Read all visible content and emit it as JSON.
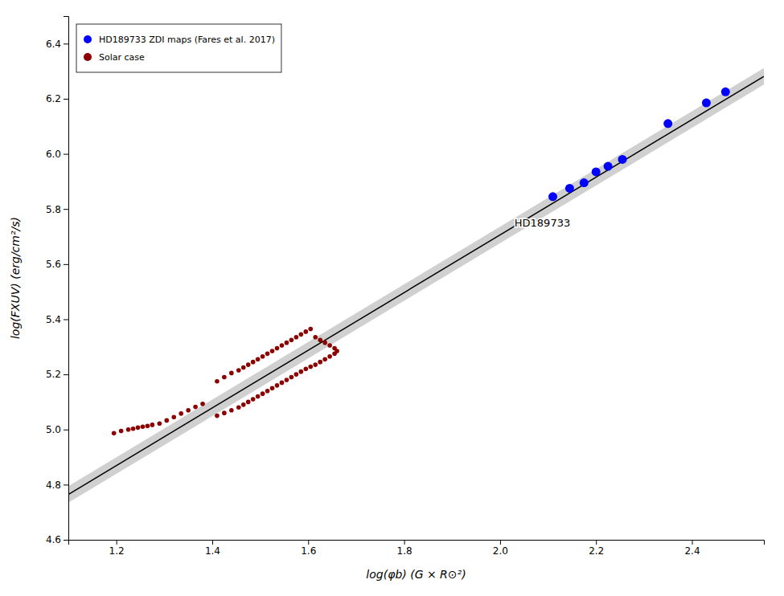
{
  "chart_data": {
    "type": "scatter",
    "xlabel": "log(φb) (G × R⊙²)",
    "ylabel": "log(FXUV) (erg/cm²/s)",
    "xlim": [
      1.1,
      2.55
    ],
    "ylim": [
      4.6,
      6.5
    ],
    "xticks": [
      1.2,
      1.4,
      1.6,
      1.8,
      {
        "value": 2.0,
        "label": "2.0"
      },
      2.2,
      2.4
    ],
    "yticks": [
      4.6,
      4.8,
      {
        "value": 5.0,
        "label": "5.0"
      },
      5.2,
      5.4,
      5.6,
      5.8,
      {
        "value": 6.0,
        "label": "6.0"
      },
      6.2,
      6.4
    ],
    "grid": false,
    "legend": "upper left",
    "annotations": [
      {
        "text": "HD189733",
        "x": 2.03,
        "y": 5.75
      }
    ],
    "series": [
      {
        "name": "HD189733 ZDI maps (Fares et al. 2017)",
        "type": "scatter",
        "marker": "circle",
        "color": "#0000ff",
        "x": [
          2.11,
          2.145,
          2.175,
          2.2,
          2.225,
          2.255,
          2.35,
          2.43,
          2.47
        ],
        "values": [
          5.845,
          5.875,
          5.895,
          5.935,
          5.955,
          5.98,
          6.11,
          6.185,
          6.225
        ]
      },
      {
        "name": "Solar case",
        "type": "scatter",
        "marker": "circle",
        "color": "#8b0000",
        "x": [
          1.195,
          1.21,
          1.225,
          1.235,
          1.245,
          1.255,
          1.265,
          1.275,
          1.29,
          1.305,
          1.32,
          1.335,
          1.35,
          1.365,
          1.38,
          1.41,
          1.425,
          1.44,
          1.455,
          1.465,
          1.475,
          1.485,
          1.495,
          1.505,
          1.515,
          1.525,
          1.535,
          1.545,
          1.555,
          1.565,
          1.575,
          1.585,
          1.595,
          1.605,
          1.615,
          1.625,
          1.635,
          1.645,
          1.655,
          1.66,
          1.655,
          1.645,
          1.635,
          1.625,
          1.615,
          1.605,
          1.595,
          1.585,
          1.575,
          1.565,
          1.555,
          1.545,
          1.535,
          1.525,
          1.515,
          1.505,
          1.495,
          1.485,
          1.475,
          1.465,
          1.455,
          1.44,
          1.425,
          1.41
        ],
        "values": [
          4.987,
          4.995,
          5.0,
          5.003,
          5.007,
          5.01,
          5.013,
          5.017,
          5.022,
          5.033,
          5.045,
          5.058,
          5.07,
          5.082,
          5.093,
          5.175,
          5.19,
          5.205,
          5.215,
          5.225,
          5.235,
          5.245,
          5.255,
          5.265,
          5.275,
          5.285,
          5.295,
          5.305,
          5.315,
          5.325,
          5.335,
          5.345,
          5.355,
          5.365,
          5.335,
          5.325,
          5.315,
          5.305,
          5.295,
          5.285,
          5.275,
          5.265,
          5.255,
          5.245,
          5.235,
          5.228,
          5.22,
          5.21,
          5.2,
          5.19,
          5.18,
          5.17,
          5.16,
          5.15,
          5.14,
          5.13,
          5.12,
          5.11,
          5.1,
          5.09,
          5.08,
          5.07,
          5.06,
          5.05
        ]
      },
      {
        "type": "line",
        "line_style": "solid",
        "color": "black",
        "x": [
          1.1,
          2.55
        ],
        "values": [
          4.7646,
          6.2813
        ]
      },
      {
        "type": "area",
        "color": "#d0d0d0",
        "x": [
          1.1,
          2.55
        ],
        "lower": [
          4.7346,
          6.2513
        ],
        "upper": [
          4.7946,
          6.3113
        ]
      }
    ]
  }
}
